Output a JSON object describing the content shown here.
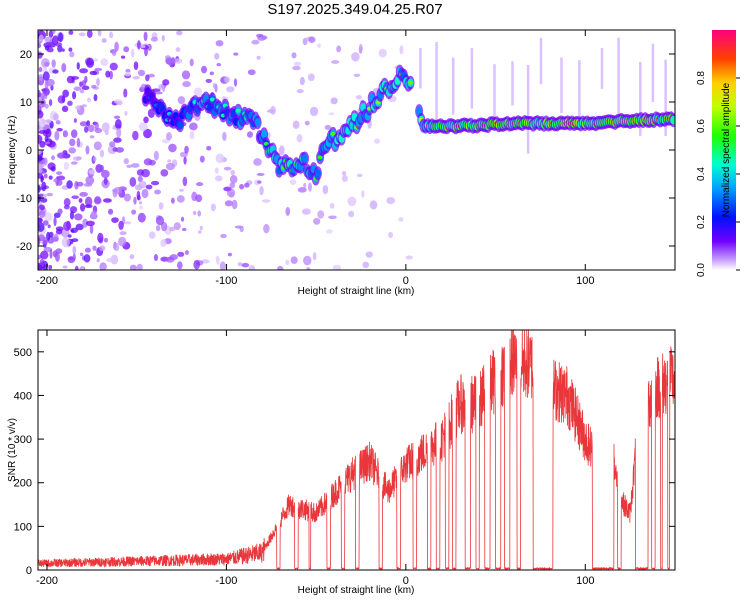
{
  "title": "S197.2025.349.04.25.R07",
  "chart_data": [
    {
      "type": "heatmap",
      "name": "spectrogram",
      "xlabel": "Height of straight line (km)",
      "ylabel": "Frequency (Hz)",
      "xlim": [
        -205,
        150
      ],
      "ylim": [
        -25,
        25
      ],
      "xticks": [
        -200,
        -100,
        0,
        100
      ],
      "yticks": [
        -20,
        -10,
        0,
        10,
        20
      ],
      "colorbar": {
        "label": "Normalized spectral amplitude",
        "range": [
          0,
          1
        ],
        "ticks": [
          0.0,
          0.2,
          0.4,
          0.6,
          0.8
        ]
      },
      "ridge": [
        {
          "x": -140,
          "y": 11,
          "amp": 0.25
        },
        {
          "x": -130,
          "y": 5,
          "amp": 0.35
        },
        {
          "x": -115,
          "y": 10,
          "amp": 0.4
        },
        {
          "x": -100,
          "y": 8,
          "amp": 0.4
        },
        {
          "x": -85,
          "y": 6,
          "amp": 0.45
        },
        {
          "x": -75,
          "y": -1,
          "amp": 0.45
        },
        {
          "x": -68,
          "y": -4,
          "amp": 0.5
        },
        {
          "x": -60,
          "y": -2,
          "amp": 0.5
        },
        {
          "x": -50,
          "y": -5,
          "amp": 0.5
        },
        {
          "x": -45,
          "y": 1,
          "amp": 0.5
        },
        {
          "x": -30,
          "y": 5,
          "amp": 0.55
        },
        {
          "x": -20,
          "y": 9,
          "amp": 0.55
        },
        {
          "x": -10,
          "y": 13,
          "amp": 0.55
        },
        {
          "x": 0,
          "y": 16,
          "amp": 0.5
        },
        {
          "x": 10,
          "y": 5,
          "amp": 0.6
        },
        {
          "x": 30,
          "y": 5,
          "amp": 0.8
        },
        {
          "x": 60,
          "y": 5.5,
          "amp": 0.75
        },
        {
          "x": 100,
          "y": 5.5,
          "amp": 0.8
        },
        {
          "x": 120,
          "y": 6,
          "amp": 0.7
        },
        {
          "x": 150,
          "y": 6.5,
          "amp": 0.75
        }
      ]
    },
    {
      "type": "line",
      "name": "snr",
      "xlabel": "Height of straight line (km)",
      "ylabel": "SNR (10 * v/v)",
      "xlim": [
        -205,
        150
      ],
      "ylim": [
        0,
        550
      ],
      "xticks": [
        -200,
        -100,
        0,
        100
      ],
      "yticks": [
        0,
        100,
        200,
        300,
        400,
        500
      ],
      "color": "#e8363a",
      "envelope": [
        {
          "x": -205,
          "y": 15
        },
        {
          "x": -150,
          "y": 20
        },
        {
          "x": -100,
          "y": 25
        },
        {
          "x": -80,
          "y": 40
        },
        {
          "x": -65,
          "y": 150
        },
        {
          "x": -50,
          "y": 130
        },
        {
          "x": -30,
          "y": 220
        },
        {
          "x": -20,
          "y": 250
        },
        {
          "x": -10,
          "y": 180
        },
        {
          "x": 0,
          "y": 240
        },
        {
          "x": 10,
          "y": 270
        },
        {
          "x": 20,
          "y": 300
        },
        {
          "x": 30,
          "y": 380
        },
        {
          "x": 40,
          "y": 380
        },
        {
          "x": 50,
          "y": 440
        },
        {
          "x": 60,
          "y": 480
        },
        {
          "x": 70,
          "y": 470
        },
        {
          "x": 80,
          "y": 420
        },
        {
          "x": 90,
          "y": 400
        },
        {
          "x": 100,
          "y": 300
        },
        {
          "x": 110,
          "y": 240
        },
        {
          "x": 115,
          "y": 270
        },
        {
          "x": 120,
          "y": 160
        },
        {
          "x": 125,
          "y": 130
        },
        {
          "x": 130,
          "y": 350
        },
        {
          "x": 140,
          "y": 420
        },
        {
          "x": 150,
          "y": 440
        }
      ],
      "dropouts": [
        {
          "from": -72,
          "to": -70
        },
        {
          "from": -62,
          "to": -60
        },
        {
          "from": -54,
          "to": -53
        },
        {
          "from": -44,
          "to": -42
        },
        {
          "from": -36,
          "to": -34
        },
        {
          "from": -28,
          "to": -26
        },
        {
          "from": -15,
          "to": -13
        },
        {
          "from": -5,
          "to": -3
        },
        {
          "from": 4,
          "to": 6
        },
        {
          "from": 12,
          "to": 14
        },
        {
          "from": 17,
          "to": 19
        },
        {
          "from": 22,
          "to": 24
        },
        {
          "from": 26,
          "to": 28
        },
        {
          "from": 33,
          "to": 36
        },
        {
          "from": 39,
          "to": 41
        },
        {
          "from": 44,
          "to": 47
        },
        {
          "from": 50,
          "to": 53
        },
        {
          "from": 55,
          "to": 58
        },
        {
          "from": 62,
          "to": 64
        },
        {
          "from": 71,
          "to": 82
        },
        {
          "from": 104,
          "to": 116
        },
        {
          "from": 118,
          "to": 120
        },
        {
          "from": 128,
          "to": 135
        },
        {
          "from": 137,
          "to": 139
        },
        {
          "from": 142,
          "to": 143
        },
        {
          "from": 146,
          "to": 147
        }
      ]
    }
  ]
}
